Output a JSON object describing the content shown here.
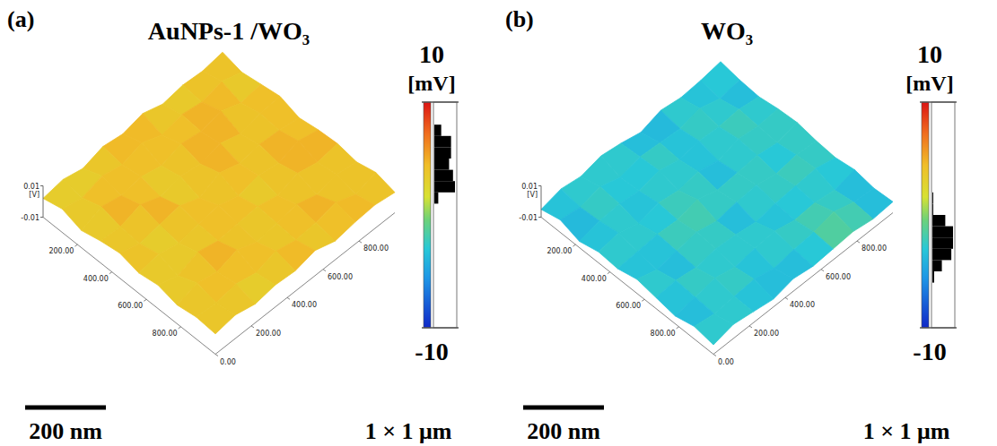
{
  "chart_data": [
    {
      "type": "surface",
      "title": "AuNPs-1 /WO₃",
      "annotations": [
        "(a)",
        "200 nm",
        "1 × 1 μm"
      ],
      "xlim": [
        0,
        1000
      ],
      "xticks": [
        {
          "value": 200,
          "label": "200.00"
        },
        {
          "value": 400,
          "label": "400.00"
        },
        {
          "value": 600,
          "label": "600.00"
        },
        {
          "value": 800,
          "label": "800.00"
        }
      ],
      "ylim": [
        0,
        1000
      ],
      "yticks": [
        {
          "value": 0,
          "label": "0.00"
        },
        {
          "value": 200,
          "label": "200.00"
        },
        {
          "value": 400,
          "label": "400.00"
        },
        {
          "value": 600,
          "label": "600.00"
        },
        {
          "value": 800,
          "label": "800.00"
        }
      ],
      "zlim": [
        -0.01,
        0.01
      ],
      "zticks": [
        0.01,
        -0.01
      ],
      "zlabel": "[V]",
      "colorbar": {
        "range": [
          -10,
          10
        ],
        "ticks": [
          10,
          -10
        ],
        "label": "[mV]"
      },
      "cells": [
        [
          2,
          4,
          1,
          5,
          3,
          6,
          2,
          4,
          3,
          5
        ],
        [
          5,
          2,
          6,
          3,
          7,
          2,
          5,
          3,
          6,
          2
        ],
        [
          1,
          6,
          3,
          5,
          2,
          6,
          4,
          7,
          2,
          4
        ],
        [
          4,
          3,
          7,
          2,
          5,
          3,
          6,
          2,
          5,
          6
        ],
        [
          6,
          2,
          4,
          6,
          1,
          7,
          3,
          5,
          4,
          2
        ],
        [
          3,
          5,
          2,
          4,
          6,
          2,
          5,
          3,
          7,
          4
        ],
        [
          5,
          1,
          6,
          3,
          4,
          5,
          2,
          6,
          3,
          5
        ],
        [
          2,
          6,
          3,
          7,
          2,
          4,
          6,
          2,
          5,
          3
        ],
        [
          4,
          3,
          5,
          2,
          6,
          3,
          4,
          7,
          2,
          6
        ],
        [
          3,
          5,
          2,
          4,
          3,
          6,
          2,
          4,
          5,
          3
        ]
      ]
    },
    {
      "type": "surface",
      "title": "WO₃",
      "annotations": [
        "(b)",
        "200 nm",
        "1 × 1 μm"
      ],
      "xlim": [
        0,
        1000
      ],
      "xticks": [
        {
          "value": 200,
          "label": "200.00"
        },
        {
          "value": 400,
          "label": "400.00"
        },
        {
          "value": 600,
          "label": "600.00"
        },
        {
          "value": 800,
          "label": "800.00"
        }
      ],
      "ylim": [
        0,
        1000
      ],
      "yticks": [
        {
          "value": 0,
          "label": "0.00"
        },
        {
          "value": 200,
          "label": "200.00"
        },
        {
          "value": 400,
          "label": "400.00"
        },
        {
          "value": 600,
          "label": "600.00"
        },
        {
          "value": 800,
          "label": "800.00"
        }
      ],
      "zlim": [
        -0.01,
        0.01
      ],
      "zticks": [
        0.01,
        -0.01
      ],
      "zlabel": "[V]",
      "colorbar": {
        "range": [
          -10,
          10
        ],
        "ticks": [
          10,
          -10
        ],
        "label": "[mV]"
      },
      "cells": [
        [
          -5,
          -2,
          -4,
          -1,
          -3,
          -6,
          -2,
          -4,
          -3,
          -1
        ],
        [
          -2,
          -4,
          -1,
          -5,
          -2,
          -3,
          -4,
          -1,
          -5,
          -3
        ],
        [
          -6,
          -3,
          -2,
          -4,
          -1,
          -4,
          -2,
          -3,
          -2,
          -4
        ],
        [
          -3,
          -1,
          -5,
          -2,
          -4,
          -2,
          -5,
          -1,
          -3,
          -2
        ],
        [
          -4,
          -3,
          -2,
          -3,
          0,
          -4,
          -3,
          -2,
          -4,
          -1
        ],
        [
          -1,
          -5,
          -3,
          -1,
          -4,
          -2,
          -1,
          -4,
          -2,
          -3
        ],
        [
          -3,
          -2,
          -4,
          -2,
          -3,
          -5,
          -3,
          -2,
          -1,
          -4
        ],
        [
          -5,
          -3,
          -1,
          -4,
          -2,
          -1,
          -4,
          -3,
          -5,
          -2
        ],
        [
          -2,
          -4,
          -3,
          -2,
          -5,
          -3,
          -2,
          1,
          -3,
          -4
        ],
        [
          -4,
          -1,
          -3,
          -5,
          -2,
          -4,
          -3,
          -2,
          -4,
          -3
        ]
      ]
    }
  ]
}
